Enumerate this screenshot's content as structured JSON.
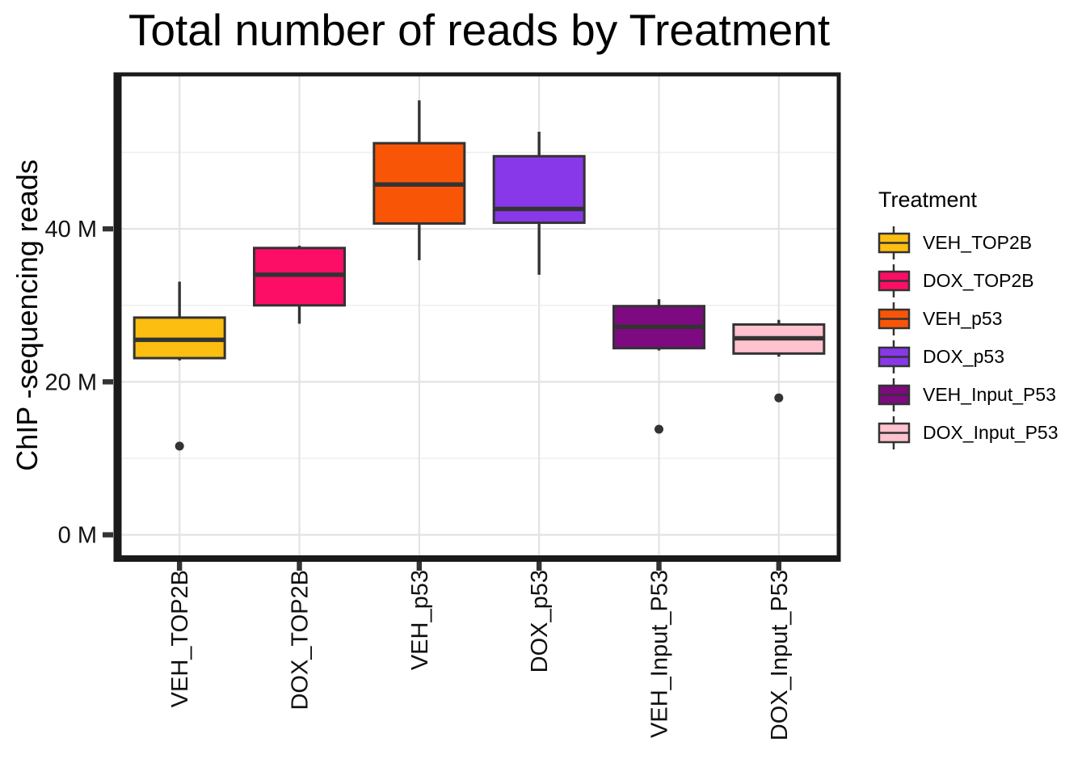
{
  "chart_data": {
    "type": "boxplot",
    "title": "Total number of reads by Treatment",
    "xlabel": "",
    "ylabel": "ChIP -sequencing reads",
    "y_unit": "M reads (millions)",
    "ylim": [
      -3,
      60.2
    ],
    "y_major_ticks": [
      0,
      20,
      40
    ],
    "y_tick_labels": [
      "0 M",
      "20 M",
      "40 M"
    ],
    "y_minor_gridlines": [
      10,
      30,
      50
    ],
    "grid": "major and minor horizontal, major vertical per category",
    "legend_position": "right",
    "categories": [
      "VEH_TOP2B",
      "DOX_TOP2B",
      "VEH_p53",
      "DOX_p53",
      "VEH_Input_P53",
      "DOX_Input_P53"
    ],
    "series": [
      {
        "name": "VEH_TOP2B",
        "color": "#FCBE11",
        "whisker_low": 22.8,
        "q1": 23.1,
        "median": 25.5,
        "q3": 28.4,
        "whisker_high": 33.1,
        "outliers": [
          11.6
        ]
      },
      {
        "name": "DOX_TOP2B",
        "color": "#FC0D66",
        "whisker_low": 27.6,
        "q1": 30.0,
        "median": 34.0,
        "q3": 37.5,
        "whisker_high": 37.8,
        "outliers": []
      },
      {
        "name": "VEH_p53",
        "color": "#F95506",
        "whisker_low": 35.9,
        "q1": 40.7,
        "median": 45.8,
        "q3": 51.2,
        "whisker_high": 56.8,
        "outliers": []
      },
      {
        "name": "DOX_p53",
        "color": "#8838E8",
        "whisker_low": 34.0,
        "q1": 40.8,
        "median": 42.6,
        "q3": 49.5,
        "whisker_high": 52.7,
        "outliers": []
      },
      {
        "name": "VEH_Input_P53",
        "color": "#7D0A80",
        "whisker_low": 24.1,
        "q1": 24.4,
        "median": 27.2,
        "q3": 29.9,
        "whisker_high": 30.8,
        "outliers": [
          13.8
        ]
      },
      {
        "name": "DOX_Input_P53",
        "color": "#FFC2CF",
        "whisker_low": 23.3,
        "q1": 23.7,
        "median": 25.7,
        "q3": 27.5,
        "whisker_high": 28.1,
        "outliers": [
          17.9
        ]
      }
    ]
  },
  "legend": {
    "title": "Treatment"
  },
  "colors": {
    "panel_background": "#FFFFFF",
    "panel_border": "#1A1A1A",
    "grid_major": "#E3E3E3",
    "grid_minor": "#EFEFEF",
    "box_stroke": "#333333",
    "median_stroke": "#333333",
    "outlier": "#333333",
    "tick": "#333333",
    "axis_text": "#111111"
  }
}
